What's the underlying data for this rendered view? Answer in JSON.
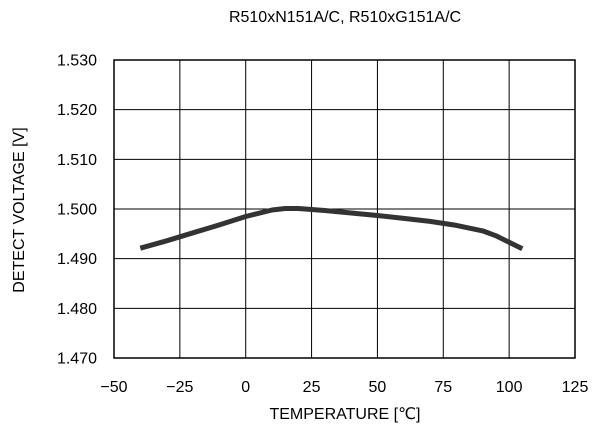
{
  "chart_data": {
    "type": "line",
    "title": "R510xN151A/C, R510xG151A/C",
    "xlabel": "TEMPERATURE [℃]",
    "ylabel": "DETECT VOLTAGE [V]",
    "xlim": [
      -50,
      125
    ],
    "ylim": [
      1.47,
      1.53
    ],
    "x_ticks": [
      -50,
      -25,
      0,
      25,
      50,
      75,
      100,
      125
    ],
    "x_tick_labels": [
      "−50",
      "−25",
      "0",
      "25",
      "50",
      "75",
      "100",
      "125"
    ],
    "y_ticks": [
      1.47,
      1.48,
      1.49,
      1.5,
      1.51,
      1.52,
      1.53
    ],
    "y_tick_labels": [
      "1.470",
      "1.480",
      "1.490",
      "1.500",
      "1.510",
      "1.520",
      "1.530"
    ],
    "grid": true,
    "legend": "none",
    "series": [
      {
        "color": "#333333",
        "x": [
          -40,
          -30,
          -20,
          -10,
          0,
          10,
          15,
          20,
          30,
          40,
          50,
          60,
          70,
          80,
          90,
          95,
          100,
          105
        ],
        "y": [
          1.4921,
          1.4936,
          1.4952,
          1.4968,
          1.4985,
          1.4998,
          1.5001,
          1.5001,
          1.4997,
          1.4992,
          1.4987,
          1.4981,
          1.4975,
          1.4967,
          1.4956,
          1.4946,
          1.4933,
          1.492
        ]
      }
    ]
  }
}
